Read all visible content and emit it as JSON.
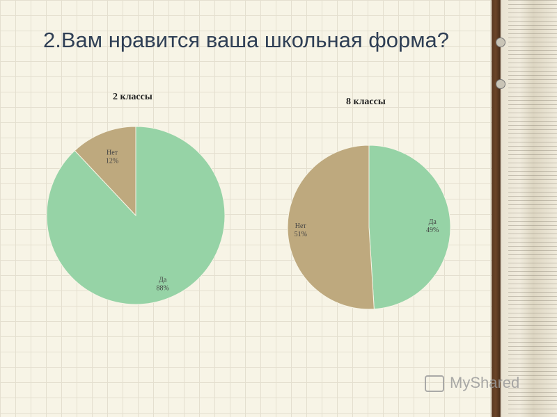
{
  "slide": {
    "title": "2.Вам нравится ваша школьная форма?",
    "watermark": "MyShared"
  },
  "colors": {
    "yes": "#96d3a6",
    "no": "#bea97e"
  },
  "chart_data": [
    {
      "type": "pie",
      "title": "2 классы",
      "slices": [
        {
          "label": "Да",
          "value": 88,
          "value_label": "88%",
          "color": "#96d3a6"
        },
        {
          "label": "Нет",
          "value": 12,
          "value_label": "12%",
          "color": "#bea97e"
        }
      ]
    },
    {
      "type": "pie",
      "title": "8 классы",
      "slices": [
        {
          "label": "Да",
          "value": 49,
          "value_label": "49%",
          "color": "#96d3a6"
        },
        {
          "label": "Нет",
          "value": 51,
          "value_label": "51%",
          "color": "#bea97e"
        }
      ]
    }
  ]
}
